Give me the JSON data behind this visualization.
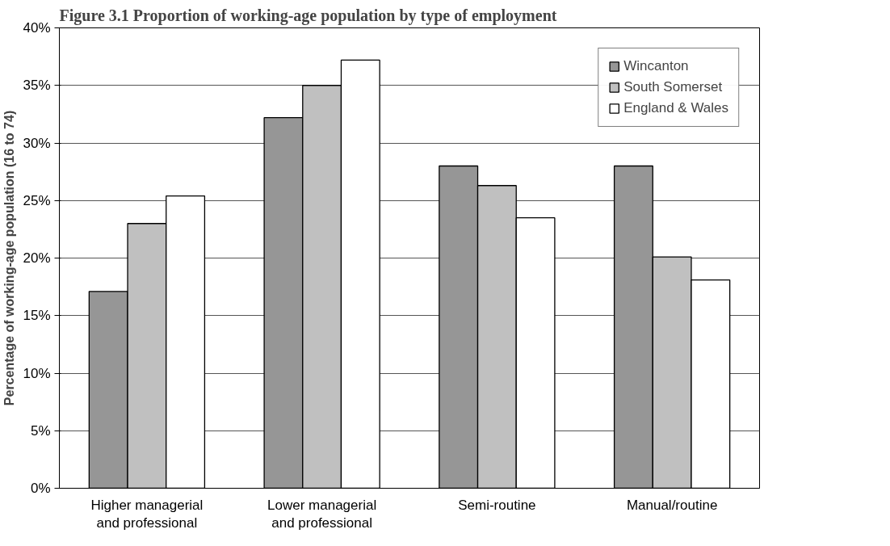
{
  "chart_data": {
    "type": "bar",
    "title": "Figure 3.1 Proportion of working-age population by type of employment",
    "ylabel": "Percentage of working-age population (16 to 74)",
    "categories": [
      "Higher managerial\nand professional",
      "Lower managerial\nand professional",
      "Semi-routine",
      "Manual/routine"
    ],
    "series": [
      {
        "name": "Wincanton",
        "color": "#969696",
        "values": [
          17.1,
          32.2,
          28.0,
          28.0
        ]
      },
      {
        "name": "South Somerset",
        "color": "#c0c0c0",
        "values": [
          23.0,
          35.0,
          26.3,
          20.1
        ]
      },
      {
        "name": "England & Wales",
        "color": "#ffffff",
        "values": [
          25.4,
          37.2,
          23.5,
          18.1
        ]
      }
    ],
    "ylim": [
      0,
      40
    ],
    "yticks": [
      {
        "value": 0,
        "label": "0%"
      },
      {
        "value": 5,
        "label": "5%"
      },
      {
        "value": 10,
        "label": "10%"
      },
      {
        "value": 15,
        "label": "15%"
      },
      {
        "value": 20,
        "label": "20%"
      },
      {
        "value": 25,
        "label": "25%"
      },
      {
        "value": 30,
        "label": "30%"
      },
      {
        "value": 35,
        "label": "35%"
      },
      {
        "value": 40,
        "label": "40%"
      }
    ],
    "grid": "y",
    "legend": "top right"
  }
}
